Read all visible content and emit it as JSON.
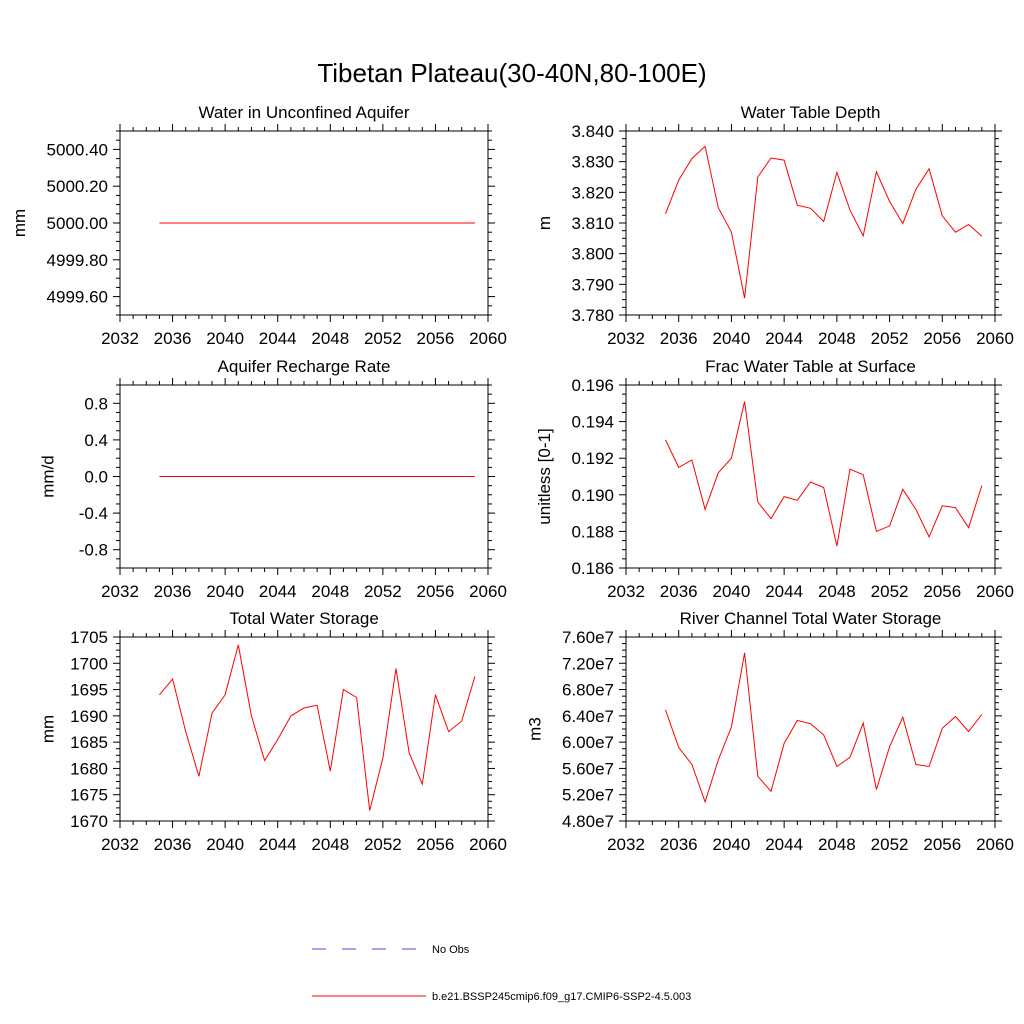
{
  "title": "Tibetan Plateau(30-40N,80-100E)",
  "legend": [
    {
      "label": "No Obs",
      "color": "#4d4dd9",
      "dash": "dashed"
    },
    {
      "label": "b.e21.BSSP245cmip6.f09_g17.CMIP6-SSP2-4.5.003",
      "color": "#ff0000",
      "dash": "solid"
    }
  ],
  "chart_data": [
    {
      "type": "line",
      "title": "Water in Unconfined Aquifer",
      "ylabel": "mm",
      "xlim": [
        2032,
        2060
      ],
      "ylim": [
        4999.5,
        5000.5
      ],
      "xticks": [
        "2032",
        "2036",
        "2040",
        "2044",
        "2048",
        "2052",
        "2056",
        "2060"
      ],
      "yticks": [
        {
          "v": 4999.6,
          "label": "4999.60"
        },
        {
          "v": 4999.8,
          "label": "4999.80"
        },
        {
          "v": 5000.0,
          "label": "5000.00"
        },
        {
          "v": 5000.2,
          "label": "5000.20"
        },
        {
          "v": 5000.4,
          "label": "5000.40"
        }
      ],
      "series": [
        {
          "color": "#ff0000",
          "x": [
            2035,
            2036,
            2037,
            2038,
            2039,
            2040,
            2041,
            2042,
            2043,
            2044,
            2045,
            2046,
            2047,
            2048,
            2049,
            2050,
            2051,
            2052,
            2053,
            2054,
            2055,
            2056,
            2057,
            2058,
            2059
          ],
          "y": [
            5000,
            5000,
            5000,
            5000,
            5000,
            5000,
            5000,
            5000,
            5000,
            5000,
            5000,
            5000,
            5000,
            5000,
            5000,
            5000,
            5000,
            5000,
            5000,
            5000,
            5000,
            5000,
            5000,
            5000,
            5000
          ]
        }
      ]
    },
    {
      "type": "line",
      "title": "Water Table Depth",
      "ylabel": "m",
      "xlim": [
        2032,
        2060
      ],
      "ylim": [
        3.78,
        3.84
      ],
      "xticks": [
        "2032",
        "2036",
        "2040",
        "2044",
        "2048",
        "2052",
        "2056",
        "2060"
      ],
      "yticks": [
        {
          "v": 3.78,
          "label": "3.780"
        },
        {
          "v": 3.79,
          "label": "3.790"
        },
        {
          "v": 3.8,
          "label": "3.800"
        },
        {
          "v": 3.81,
          "label": "3.810"
        },
        {
          "v": 3.82,
          "label": "3.820"
        },
        {
          "v": 3.83,
          "label": "3.830"
        },
        {
          "v": 3.84,
          "label": "3.840"
        }
      ],
      "series": [
        {
          "color": "#ff0000",
          "x": [
            2035,
            2036,
            2037,
            2038,
            2039,
            2040,
            2041,
            2042,
            2043,
            2044,
            2045,
            2046,
            2047,
            2048,
            2049,
            2050,
            2051,
            2052,
            2053,
            2054,
            2055,
            2056,
            2057,
            2058,
            2059
          ],
          "y": [
            3.813,
            3.824,
            3.831,
            3.835,
            3.815,
            3.807,
            3.7855,
            3.825,
            3.8312,
            3.8305,
            3.8158,
            3.8148,
            3.8105,
            3.8265,
            3.8142,
            3.8058,
            3.8267,
            3.817,
            3.8098,
            3.821,
            3.8277,
            3.8123,
            3.807,
            3.8095,
            3.8057
          ]
        }
      ]
    },
    {
      "type": "line",
      "title": "Aquifer Recharge Rate",
      "ylabel": "mm/d",
      "xlim": [
        2032,
        2060
      ],
      "ylim": [
        -1.0,
        1.0
      ],
      "xticks": [
        "2032",
        "2036",
        "2040",
        "2044",
        "2048",
        "2052",
        "2056",
        "2060"
      ],
      "yticks": [
        {
          "v": -0.8,
          "label": "-0.8"
        },
        {
          "v": -0.4,
          "label": "-0.4"
        },
        {
          "v": 0.0,
          "label": "0.0"
        },
        {
          "v": 0.4,
          "label": "0.4"
        },
        {
          "v": 0.8,
          "label": "0.8"
        }
      ],
      "series": [
        {
          "color": "#ff0000",
          "x": [
            2035,
            2036,
            2037,
            2038,
            2039,
            2040,
            2041,
            2042,
            2043,
            2044,
            2045,
            2046,
            2047,
            2048,
            2049,
            2050,
            2051,
            2052,
            2053,
            2054,
            2055,
            2056,
            2057,
            2058,
            2059
          ],
          "y": [
            0,
            0,
            0,
            0,
            0,
            0,
            0,
            0,
            0,
            0,
            0,
            0,
            0,
            0,
            0,
            0,
            0,
            0,
            0,
            0,
            0,
            0,
            0,
            0,
            0
          ]
        }
      ]
    },
    {
      "type": "line",
      "title": "Frac Water Table at Surface",
      "ylabel": "unitless [0-1]",
      "xlim": [
        2032,
        2060
      ],
      "ylim": [
        0.186,
        0.196
      ],
      "xticks": [
        "2032",
        "2036",
        "2040",
        "2044",
        "2048",
        "2052",
        "2056",
        "2060"
      ],
      "yticks": [
        {
          "v": 0.186,
          "label": "0.186"
        },
        {
          "v": 0.188,
          "label": "0.188"
        },
        {
          "v": 0.19,
          "label": "0.190"
        },
        {
          "v": 0.192,
          "label": "0.192"
        },
        {
          "v": 0.194,
          "label": "0.194"
        },
        {
          "v": 0.196,
          "label": "0.196"
        }
      ],
      "series": [
        {
          "color": "#ff0000",
          "x": [
            2035,
            2036,
            2037,
            2038,
            2039,
            2040,
            2041,
            2042,
            2043,
            2044,
            2045,
            2046,
            2047,
            2048,
            2049,
            2050,
            2051,
            2052,
            2053,
            2054,
            2055,
            2056,
            2057,
            2058,
            2059
          ],
          "y": [
            0.193,
            0.1915,
            0.1919,
            0.1892,
            0.1912,
            0.192,
            0.1951,
            0.1896,
            0.1887,
            0.1899,
            0.1897,
            0.1907,
            0.1904,
            0.1872,
            0.1914,
            0.1911,
            0.188,
            0.1883,
            0.1903,
            0.1892,
            0.1877,
            0.1894,
            0.1893,
            0.1882,
            0.1905
          ]
        }
      ]
    },
    {
      "type": "line",
      "title": "Total Water Storage",
      "ylabel": "mm",
      "xlim": [
        2032,
        2060
      ],
      "ylim": [
        1670,
        1705
      ],
      "xticks": [
        "2032",
        "2036",
        "2040",
        "2044",
        "2048",
        "2052",
        "2056",
        "2060"
      ],
      "yticks": [
        {
          "v": 1670,
          "label": "1670"
        },
        {
          "v": 1675,
          "label": "1675"
        },
        {
          "v": 1680,
          "label": "1680"
        },
        {
          "v": 1685,
          "label": "1685"
        },
        {
          "v": 1690,
          "label": "1690"
        },
        {
          "v": 1695,
          "label": "1695"
        },
        {
          "v": 1700,
          "label": "1700"
        },
        {
          "v": 1705,
          "label": "1705"
        }
      ],
      "series": [
        {
          "color": "#ff0000",
          "x": [
            2035,
            2036,
            2037,
            2038,
            2039,
            2040,
            2041,
            2042,
            2043,
            2044,
            2045,
            2046,
            2047,
            2048,
            2049,
            2050,
            2051,
            2052,
            2053,
            2054,
            2055,
            2056,
            2057,
            2058,
            2059
          ],
          "y": [
            1694,
            1697,
            1687,
            1678.5,
            1690.5,
            1694,
            1703.5,
            1690,
            1681.5,
            1685.5,
            1690,
            1691.5,
            1692,
            1679.5,
            1695,
            1693.5,
            1672,
            1682,
            1699,
            1683,
            1677,
            1694,
            1687,
            1689,
            1697.5
          ]
        }
      ]
    },
    {
      "type": "line",
      "title": "River Channel Total Water Storage",
      "ylabel": "m3",
      "xlim": [
        2032,
        2060
      ],
      "ylim": [
        48000000.0,
        76000000.0
      ],
      "xticks": [
        "2032",
        "2036",
        "2040",
        "2044",
        "2048",
        "2052",
        "2056",
        "2060"
      ],
      "yticks": [
        {
          "v": 48000000.0,
          "label": "4.80e7"
        },
        {
          "v": 52000000.0,
          "label": "5.20e7"
        },
        {
          "v": 56000000.0,
          "label": "5.60e7"
        },
        {
          "v": 60000000.0,
          "label": "6.00e7"
        },
        {
          "v": 64000000.0,
          "label": "6.40e7"
        },
        {
          "v": 68000000.0,
          "label": "6.80e7"
        },
        {
          "v": 72000000.0,
          "label": "7.20e7"
        },
        {
          "v": 76000000.0,
          "label": "7.60e7"
        }
      ],
      "series": [
        {
          "color": "#ff0000",
          "x": [
            2035,
            2036,
            2037,
            2038,
            2039,
            2040,
            2041,
            2042,
            2043,
            2044,
            2045,
            2046,
            2047,
            2048,
            2049,
            2050,
            2051,
            2052,
            2053,
            2054,
            2055,
            2056,
            2057,
            2058,
            2059
          ],
          "y": [
            64900000.0,
            59200000.0,
            56600000.0,
            50900000.0,
            57300000.0,
            62300000.0,
            73600000.0,
            54800000.0,
            52500000.0,
            59800000.0,
            63300000.0,
            62800000.0,
            61100000.0,
            56300000.0,
            57700000.0,
            62900000.0,
            52800000.0,
            59300000.0,
            63800000.0,
            56600000.0,
            56300000.0,
            62100000.0,
            63900000.0,
            61600000.0,
            64200000.0
          ]
        }
      ]
    }
  ]
}
